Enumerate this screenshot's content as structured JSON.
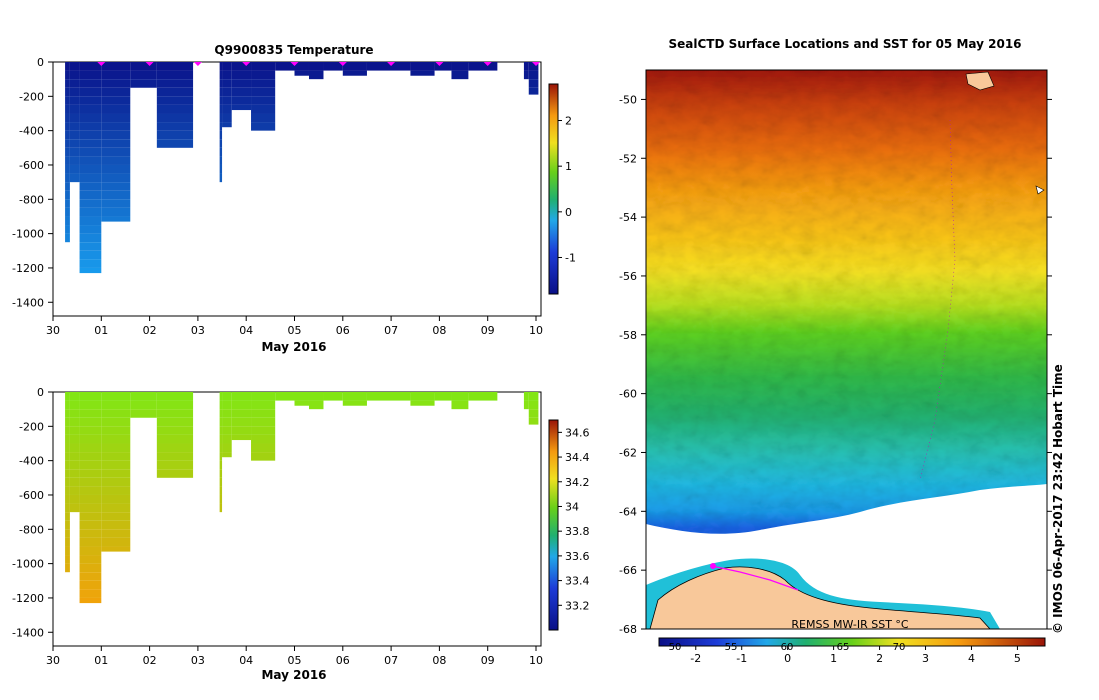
{
  "chart_data": [
    {
      "type": "heatmap",
      "title": "Q9900835  Temperature",
      "xlabel": "May 2016",
      "ylabel": "",
      "x_ticks": [
        "30",
        "01",
        "02",
        "03",
        "04",
        "05",
        "06",
        "07",
        "08",
        "09",
        "10"
      ],
      "y_ticks": [
        0,
        -200,
        -400,
        -600,
        -800,
        -1000,
        -1200,
        -1400
      ],
      "ylim": [
        -1480,
        0
      ],
      "colorbar": {
        "min": -1.8,
        "max": 2.8,
        "ticks": [
          2,
          1,
          0,
          -1
        ],
        "labels": [
          "2",
          "1",
          "0",
          "-1"
        ]
      },
      "surface_markers": [
        1,
        2,
        3,
        4,
        5,
        6,
        7,
        8,
        9,
        10
      ],
      "profiles": [
        {
          "start": 0.25,
          "end": 0.35,
          "depth": -1060
        },
        {
          "start": 0.35,
          "end": 0.55,
          "depth": -710
        },
        {
          "start": 0.55,
          "end": 1.0,
          "depth": -1230
        },
        {
          "start": 1.0,
          "end": 1.6,
          "depth": -930
        },
        {
          "start": 1.6,
          "end": 2.15,
          "depth": -150
        },
        {
          "start": 2.15,
          "end": 2.9,
          "depth": -500
        },
        {
          "start": 3.45,
          "end": 3.5,
          "depth": -700
        },
        {
          "start": 3.5,
          "end": 3.7,
          "depth": -380
        },
        {
          "start": 3.7,
          "end": 4.1,
          "depth": -280
        },
        {
          "start": 4.1,
          "end": 4.6,
          "depth": -410
        },
        {
          "start": 4.6,
          "end": 5.0,
          "depth": -50
        },
        {
          "start": 5.0,
          "end": 5.3,
          "depth": -80
        },
        {
          "start": 5.3,
          "end": 5.6,
          "depth": -120
        },
        {
          "start": 5.6,
          "end": 6.0,
          "depth": -60
        },
        {
          "start": 6.0,
          "end": 6.5,
          "depth": -80
        },
        {
          "start": 6.5,
          "end": 7.4,
          "depth": -60
        },
        {
          "start": 7.4,
          "end": 7.9,
          "depth": -80
        },
        {
          "start": 7.9,
          "end": 8.25,
          "depth": -60
        },
        {
          "start": 8.25,
          "end": 8.6,
          "depth": -110
        },
        {
          "start": 8.6,
          "end": 9.2,
          "depth": -60
        },
        {
          "start": 9.75,
          "end": 9.85,
          "depth": -100
        },
        {
          "start": 9.85,
          "end": 10.05,
          "depth": -190
        }
      ]
    },
    {
      "type": "heatmap",
      "title": "",
      "xlabel": "May 2016",
      "ylabel": "",
      "x_ticks": [
        "30",
        "01",
        "02",
        "03",
        "04",
        "05",
        "06",
        "07",
        "08",
        "09",
        "10"
      ],
      "y_ticks": [
        0,
        -200,
        -400,
        -600,
        -800,
        -1000,
        -1200,
        -1400
      ],
      "ylim": [
        -1480,
        0
      ],
      "colorbar": {
        "min": 33.0,
        "max": 34.7,
        "ticks": [
          34.6,
          34.4,
          34.2,
          34,
          33.8,
          33.6,
          33.4,
          33.2
        ],
        "labels": [
          "34.6",
          "34.4",
          "34.2",
          "34",
          "33.8",
          "33.6",
          "33.4",
          "33.2"
        ]
      }
    },
    {
      "type": "heatmap",
      "title": "SealCTD Surface Locations and SST for 05 May 2016",
      "xlabel": "",
      "ylabel": "",
      "y_ticks": [
        -50,
        -52,
        -54,
        -56,
        -58,
        -60,
        -62,
        -64,
        -66,
        -68
      ],
      "ylim": [
        -68,
        -49
      ],
      "annotation": "REMSS MW-IR SST °C",
      "colorbar": {
        "min": -2.8,
        "max": 5.6,
        "ticks": [
          -2,
          -1,
          0,
          1,
          2,
          3,
          4,
          5
        ],
        "labels": [
          "-2",
          "-1",
          "0",
          "1",
          "2",
          "3",
          "4",
          "5"
        ],
        "f_ticks": [
          "50",
          "55",
          "60",
          "65",
          "70"
        ]
      }
    }
  ],
  "footer": {
    "credit": "© IMOS 06-Apr-2017 23:42 Hobart Time"
  }
}
